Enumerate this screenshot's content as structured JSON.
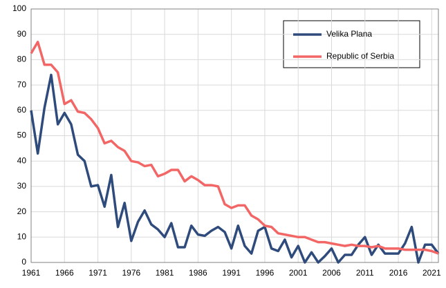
{
  "chart_data": {
    "type": "line",
    "x": [
      1961,
      1962,
      1963,
      1964,
      1965,
      1966,
      1967,
      1968,
      1969,
      1970,
      1971,
      1972,
      1973,
      1974,
      1975,
      1976,
      1977,
      1978,
      1979,
      1980,
      1981,
      1982,
      1983,
      1984,
      1985,
      1986,
      1987,
      1988,
      1989,
      1990,
      1991,
      1992,
      1993,
      1994,
      1995,
      1996,
      1997,
      1998,
      1999,
      2000,
      2001,
      2002,
      2003,
      2004,
      2005,
      2006,
      2007,
      2008,
      2009,
      2010,
      2011,
      2012,
      2013,
      2014,
      2015,
      2016,
      2017,
      2018,
      2019,
      2020,
      2021,
      2022
    ],
    "series": [
      {
        "name": "Velika Plana",
        "color": "#2f4b7c",
        "values": [
          60,
          43,
          61,
          74,
          54.5,
          59,
          54.5,
          42.5,
          40,
          30,
          30.5,
          22,
          34.5,
          14,
          23.5,
          8.5,
          16,
          20.5,
          15,
          13,
          10,
          15.5,
          6,
          6,
          14.5,
          11,
          10.5,
          12.5,
          14,
          12,
          5.5,
          14.5,
          6.5,
          3.5,
          12.5,
          14,
          5.5,
          4.5,
          9,
          2,
          6.5,
          0,
          4,
          0,
          2.5,
          5.5,
          0,
          3,
          3,
          7,
          10,
          3,
          7,
          3.5,
          3.5,
          3.5,
          7.5,
          14,
          0,
          7,
          7,
          3.5
        ]
      },
      {
        "name": "Republic of Serbia",
        "color": "#f26666",
        "values": [
          82.5,
          87,
          78,
          78,
          75,
          62.5,
          64,
          59.5,
          59,
          56.5,
          53,
          47,
          48,
          45.5,
          44,
          40,
          39.5,
          38,
          38.5,
          34,
          35,
          36.5,
          36.5,
          32,
          34,
          32.5,
          30.5,
          30.5,
          30,
          23,
          21.5,
          22.5,
          22.5,
          18.5,
          17,
          14.5,
          14,
          11.5,
          11,
          10.5,
          10,
          10,
          9,
          8,
          8,
          7.5,
          7,
          6.5,
          7,
          6.5,
          6.5,
          6,
          6.5,
          5.5,
          5.5,
          5.5,
          5,
          5,
          5,
          5,
          4.5,
          3.5
        ]
      }
    ],
    "xlim": [
      1961,
      2022
    ],
    "xticks": [
      1961,
      1966,
      1971,
      1976,
      1981,
      1986,
      1991,
      1996,
      2001,
      2006,
      2011,
      2016,
      2021
    ],
    "ylim": [
      0,
      100
    ],
    "yticks": [
      0,
      10,
      20,
      30,
      40,
      50,
      60,
      70,
      80,
      90,
      100
    ],
    "grid": true
  }
}
